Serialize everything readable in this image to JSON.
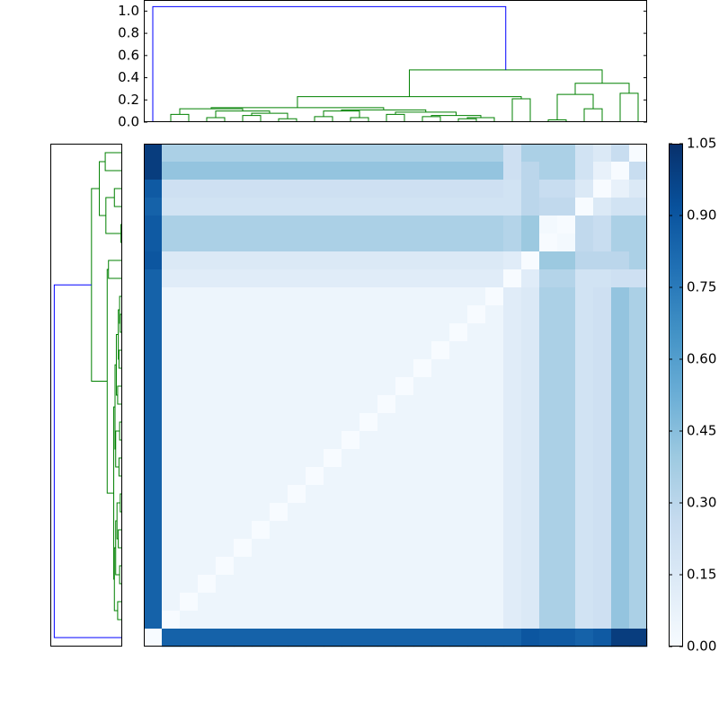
{
  "chart_data": {
    "type": "heatmap",
    "matrix": [
      [
        1.0,
        0.35,
        0.35,
        0.35,
        0.35,
        0.35,
        0.35,
        0.35,
        0.35,
        0.35,
        0.35,
        0.35,
        0.35,
        0.35,
        0.35,
        0.35,
        0.35,
        0.35,
        0.35,
        0.35,
        0.22,
        0.35,
        0.35,
        0.35,
        0.2,
        0.15,
        0.25,
        0
      ],
      [
        1.0,
        0.42,
        0.42,
        0.42,
        0.42,
        0.42,
        0.42,
        0.42,
        0.42,
        0.42,
        0.42,
        0.42,
        0.42,
        0.42,
        0.42,
        0.42,
        0.42,
        0.42,
        0.42,
        0.42,
        0.22,
        0.3,
        0.35,
        0.35,
        0.2,
        0.08,
        0,
        0.25
      ],
      [
        0.88,
        0.22,
        0.22,
        0.22,
        0.22,
        0.22,
        0.22,
        0.22,
        0.22,
        0.22,
        0.22,
        0.22,
        0.22,
        0.22,
        0.22,
        0.22,
        0.22,
        0.22,
        0.22,
        0.22,
        0.2,
        0.3,
        0.25,
        0.25,
        0.15,
        0,
        0.08,
        0.15
      ],
      [
        0.85,
        0.2,
        0.2,
        0.2,
        0.2,
        0.2,
        0.2,
        0.2,
        0.2,
        0.2,
        0.2,
        0.2,
        0.2,
        0.2,
        0.2,
        0.2,
        0.2,
        0.2,
        0.2,
        0.2,
        0.2,
        0.3,
        0.28,
        0.28,
        0,
        0.15,
        0.2,
        0.2
      ],
      [
        0.88,
        0.35,
        0.35,
        0.35,
        0.35,
        0.35,
        0.35,
        0.35,
        0.35,
        0.35,
        0.35,
        0.35,
        0.35,
        0.35,
        0.35,
        0.35,
        0.35,
        0.35,
        0.35,
        0.35,
        0.32,
        0.4,
        0.02,
        0,
        0.28,
        0.25,
        0.35,
        0.35
      ],
      [
        0.88,
        0.35,
        0.35,
        0.35,
        0.35,
        0.35,
        0.35,
        0.35,
        0.35,
        0.35,
        0.35,
        0.35,
        0.35,
        0.35,
        0.35,
        0.35,
        0.35,
        0.35,
        0.35,
        0.35,
        0.32,
        0.4,
        0,
        0.02,
        0.28,
        0.25,
        0.35,
        0.35
      ],
      [
        0.9,
        0.15,
        0.15,
        0.15,
        0.15,
        0.15,
        0.15,
        0.15,
        0.15,
        0.15,
        0.15,
        0.15,
        0.15,
        0.15,
        0.15,
        0.15,
        0.15,
        0.15,
        0.15,
        0.15,
        0.12,
        0,
        0.4,
        0.4,
        0.3,
        0.3,
        0.3,
        0.35
      ],
      [
        0.85,
        0.12,
        0.12,
        0.12,
        0.12,
        0.12,
        0.12,
        0.12,
        0.12,
        0.12,
        0.12,
        0.12,
        0.12,
        0.12,
        0.12,
        0.12,
        0.12,
        0.12,
        0.12,
        0.12,
        0,
        0.12,
        0.32,
        0.32,
        0.2,
        0.2,
        0.22,
        0.22
      ],
      [
        0.85,
        0.05,
        0.05,
        0.05,
        0.05,
        0.05,
        0.05,
        0.05,
        0.05,
        0.05,
        0.05,
        0.05,
        0.05,
        0.05,
        0.05,
        0.05,
        0.05,
        0.05,
        0.05,
        0,
        0.12,
        0.15,
        0.35,
        0.35,
        0.2,
        0.22,
        0.42,
        0.35
      ],
      [
        0.85,
        0.05,
        0.05,
        0.05,
        0.05,
        0.05,
        0.05,
        0.05,
        0.05,
        0.05,
        0.05,
        0.05,
        0.05,
        0.05,
        0.05,
        0.05,
        0.05,
        0.05,
        0,
        0.05,
        0.12,
        0.15,
        0.35,
        0.35,
        0.2,
        0.22,
        0.42,
        0.35
      ],
      [
        0.85,
        0.05,
        0.05,
        0.05,
        0.05,
        0.05,
        0.05,
        0.05,
        0.05,
        0.05,
        0.05,
        0.05,
        0.05,
        0.05,
        0.05,
        0.05,
        0.05,
        0,
        0.05,
        0.05,
        0.12,
        0.15,
        0.35,
        0.35,
        0.2,
        0.22,
        0.42,
        0.35
      ],
      [
        0.85,
        0.05,
        0.05,
        0.05,
        0.05,
        0.05,
        0.05,
        0.05,
        0.05,
        0.05,
        0.05,
        0.05,
        0.05,
        0.05,
        0.05,
        0.05,
        0,
        0.05,
        0.05,
        0.05,
        0.12,
        0.15,
        0.35,
        0.35,
        0.2,
        0.22,
        0.42,
        0.35
      ],
      [
        0.85,
        0.05,
        0.05,
        0.05,
        0.05,
        0.05,
        0.05,
        0.05,
        0.05,
        0.05,
        0.05,
        0.05,
        0.05,
        0.05,
        0.05,
        0,
        0.05,
        0.05,
        0.05,
        0.05,
        0.12,
        0.15,
        0.35,
        0.35,
        0.2,
        0.22,
        0.42,
        0.35
      ],
      [
        0.85,
        0.05,
        0.05,
        0.05,
        0.05,
        0.05,
        0.05,
        0.05,
        0.05,
        0.05,
        0.05,
        0.05,
        0.05,
        0.05,
        0,
        0.05,
        0.05,
        0.05,
        0.05,
        0.05,
        0.12,
        0.15,
        0.35,
        0.35,
        0.2,
        0.22,
        0.42,
        0.35
      ],
      [
        0.85,
        0.05,
        0.05,
        0.05,
        0.05,
        0.05,
        0.05,
        0.05,
        0.05,
        0.05,
        0.05,
        0.05,
        0.05,
        0,
        0.05,
        0.05,
        0.05,
        0.05,
        0.05,
        0.05,
        0.12,
        0.15,
        0.35,
        0.35,
        0.2,
        0.22,
        0.42,
        0.35
      ],
      [
        0.85,
        0.05,
        0.05,
        0.05,
        0.05,
        0.05,
        0.05,
        0.05,
        0.05,
        0.05,
        0.05,
        0.05,
        0,
        0.05,
        0.05,
        0.05,
        0.05,
        0.05,
        0.05,
        0.05,
        0.12,
        0.15,
        0.35,
        0.35,
        0.2,
        0.22,
        0.42,
        0.35
      ],
      [
        0.85,
        0.05,
        0.05,
        0.05,
        0.05,
        0.05,
        0.05,
        0.05,
        0.05,
        0.05,
        0.05,
        0,
        0.05,
        0.05,
        0.05,
        0.05,
        0.05,
        0.05,
        0.05,
        0.05,
        0.12,
        0.15,
        0.35,
        0.35,
        0.2,
        0.22,
        0.42,
        0.35
      ],
      [
        0.85,
        0.05,
        0.05,
        0.05,
        0.05,
        0.05,
        0.05,
        0.05,
        0.05,
        0.05,
        0,
        0.05,
        0.05,
        0.05,
        0.05,
        0.05,
        0.05,
        0.05,
        0.05,
        0.05,
        0.12,
        0.15,
        0.35,
        0.35,
        0.2,
        0.22,
        0.42,
        0.35
      ],
      [
        0.85,
        0.05,
        0.05,
        0.05,
        0.05,
        0.05,
        0.05,
        0.05,
        0.05,
        0,
        0.05,
        0.05,
        0.05,
        0.05,
        0.05,
        0.05,
        0.05,
        0.05,
        0.05,
        0.05,
        0.12,
        0.15,
        0.35,
        0.35,
        0.2,
        0.22,
        0.42,
        0.35
      ],
      [
        0.85,
        0.05,
        0.05,
        0.05,
        0.05,
        0.05,
        0.05,
        0.05,
        0,
        0.05,
        0.05,
        0.05,
        0.05,
        0.05,
        0.05,
        0.05,
        0.05,
        0.05,
        0.05,
        0.05,
        0.12,
        0.15,
        0.35,
        0.35,
        0.2,
        0.22,
        0.42,
        0.35
      ],
      [
        0.85,
        0.05,
        0.05,
        0.05,
        0.05,
        0.05,
        0.05,
        0,
        0.05,
        0.05,
        0.05,
        0.05,
        0.05,
        0.05,
        0.05,
        0.05,
        0.05,
        0.05,
        0.05,
        0.05,
        0.12,
        0.15,
        0.35,
        0.35,
        0.2,
        0.22,
        0.42,
        0.35
      ],
      [
        0.85,
        0.05,
        0.05,
        0.05,
        0.05,
        0.05,
        0,
        0.05,
        0.05,
        0.05,
        0.05,
        0.05,
        0.05,
        0.05,
        0.05,
        0.05,
        0.05,
        0.05,
        0.05,
        0.05,
        0.12,
        0.15,
        0.35,
        0.35,
        0.2,
        0.22,
        0.42,
        0.35
      ],
      [
        0.85,
        0.05,
        0.05,
        0.05,
        0.05,
        0,
        0.05,
        0.05,
        0.05,
        0.05,
        0.05,
        0.05,
        0.05,
        0.05,
        0.05,
        0.05,
        0.05,
        0.05,
        0.05,
        0.05,
        0.12,
        0.15,
        0.35,
        0.35,
        0.2,
        0.22,
        0.42,
        0.35
      ],
      [
        0.85,
        0.05,
        0.05,
        0.05,
        0,
        0.05,
        0.05,
        0.05,
        0.05,
        0.05,
        0.05,
        0.05,
        0.05,
        0.05,
        0.05,
        0.05,
        0.05,
        0.05,
        0.05,
        0.05,
        0.12,
        0.15,
        0.35,
        0.35,
        0.2,
        0.22,
        0.42,
        0.35
      ],
      [
        0.85,
        0.05,
        0.05,
        0,
        0.05,
        0.05,
        0.05,
        0.05,
        0.05,
        0.05,
        0.05,
        0.05,
        0.05,
        0.05,
        0.05,
        0.05,
        0.05,
        0.05,
        0.05,
        0.05,
        0.12,
        0.15,
        0.35,
        0.35,
        0.2,
        0.22,
        0.42,
        0.35
      ],
      [
        0.85,
        0.05,
        0,
        0.05,
        0.05,
        0.05,
        0.05,
        0.05,
        0.05,
        0.05,
        0.05,
        0.05,
        0.05,
        0.05,
        0.05,
        0.05,
        0.05,
        0.05,
        0.05,
        0.05,
        0.12,
        0.15,
        0.35,
        0.35,
        0.2,
        0.22,
        0.42,
        0.35
      ],
      [
        0.85,
        0,
        0.05,
        0.05,
        0.05,
        0.05,
        0.05,
        0.05,
        0.05,
        0.05,
        0.05,
        0.05,
        0.05,
        0.05,
        0.05,
        0.05,
        0.05,
        0.05,
        0.05,
        0.05,
        0.12,
        0.15,
        0.35,
        0.35,
        0.2,
        0.22,
        0.42,
        0.35
      ],
      [
        0,
        0.85,
        0.85,
        0.85,
        0.85,
        0.85,
        0.85,
        0.85,
        0.85,
        0.85,
        0.85,
        0.85,
        0.85,
        0.85,
        0.85,
        0.85,
        0.85,
        0.85,
        0.85,
        0.85,
        0.85,
        0.9,
        0.88,
        0.88,
        0.85,
        0.88,
        1.0,
        1.0
      ]
    ],
    "colormap": [
      "#f7fbff",
      "#deebf7",
      "#c6dbef",
      "#9ecae1",
      "#6baed6",
      "#4292c6",
      "#2171b5",
      "#08519c",
      "#08306b"
    ],
    "clim": [
      0,
      1.05
    ],
    "cticks": [
      {
        "value": 0,
        "label": "0.00"
      },
      {
        "value": 0.15,
        "label": "0.15"
      },
      {
        "value": 0.3,
        "label": "0.30"
      },
      {
        "value": 0.45,
        "label": "0.45"
      },
      {
        "value": 0.6,
        "label": "0.60"
      },
      {
        "value": 0.75,
        "label": "0.75"
      },
      {
        "value": 0.9,
        "label": "0.90"
      },
      {
        "value": 1.05,
        "label": "1.05"
      }
    ],
    "dendrogram": {
      "ylim": [
        0,
        1.1
      ],
      "yticks": [
        {
          "value": 0,
          "label": "0.0"
        },
        {
          "value": 0.2,
          "label": "0.2"
        },
        {
          "value": 0.4,
          "label": "0.4"
        },
        {
          "value": 0.6,
          "label": "0.6"
        },
        {
          "value": 0.8,
          "label": "0.8"
        },
        {
          "value": 1,
          "label": "1.0"
        }
      ],
      "color_threshold": 0.7,
      "above_color": "#0000ff",
      "below_color": "#008000",
      "icoord": [
        [
          15,
          15,
          25,
          25
        ],
        [
          35,
          35,
          45,
          45
        ],
        [
          55,
          55,
          65,
          65
        ],
        [
          75,
          75,
          85,
          85
        ],
        [
          60,
          60,
          80,
          80
        ],
        [
          40,
          40,
          70,
          70
        ],
        [
          20,
          20,
          55,
          55
        ],
        [
          95,
          95,
          105,
          105
        ],
        [
          115,
          115,
          125,
          125
        ],
        [
          100,
          100,
          120,
          120
        ],
        [
          135,
          135,
          145,
          145
        ],
        [
          155,
          155,
          165,
          165
        ],
        [
          175,
          175,
          185,
          185
        ],
        [
          180,
          180,
          195,
          195
        ],
        [
          160,
          160,
          187.5,
          187.5
        ],
        [
          140,
          140,
          173.75,
          173.75
        ],
        [
          110,
          110,
          156.875,
          156.875
        ],
        [
          37.5,
          37.5,
          133.4375,
          133.4375
        ],
        [
          205,
          205,
          215,
          215
        ],
        [
          85.46875,
          85.46875,
          210,
          210
        ],
        [
          225,
          225,
          235,
          235
        ],
        [
          245,
          245,
          255,
          255
        ],
        [
          230,
          230,
          250,
          250
        ],
        [
          265,
          265,
          275,
          275
        ],
        [
          240,
          240,
          270,
          270
        ],
        [
          147.734375,
          147.734375,
          255,
          255
        ],
        [
          5,
          5,
          201.3671875,
          201.3671875
        ]
      ],
      "dcoord": [
        [
          0,
          0.07,
          0.07,
          0
        ],
        [
          0,
          0.04,
          0.04,
          0
        ],
        [
          0,
          0.06,
          0.06,
          0
        ],
        [
          0,
          0.03,
          0.03,
          0
        ],
        [
          0.06,
          0.08,
          0.08,
          0.03
        ],
        [
          0.04,
          0.1,
          0.1,
          0.08
        ],
        [
          0.07,
          0.12,
          0.12,
          0.1
        ],
        [
          0,
          0.05,
          0.05,
          0
        ],
        [
          0,
          0.04,
          0.04,
          0
        ],
        [
          0.05,
          0.1,
          0.1,
          0.04
        ],
        [
          0,
          0.07,
          0.07,
          0
        ],
        [
          0,
          0.05,
          0.05,
          0
        ],
        [
          0,
          0.03,
          0.03,
          0
        ],
        [
          0.03,
          0.04,
          0.04,
          0
        ],
        [
          0.05,
          0.06,
          0.06,
          0.04
        ],
        [
          0.07,
          0.09,
          0.09,
          0.06
        ],
        [
          0.1,
          0.11,
          0.11,
          0.09
        ],
        [
          0.12,
          0.13,
          0.13,
          0.11
        ],
        [
          0,
          0.21,
          0.21,
          0
        ],
        [
          0.13,
          0.23,
          0.23,
          0.21
        ],
        [
          0,
          0.02,
          0.02,
          0
        ],
        [
          0,
          0.12,
          0.12,
          0
        ],
        [
          0.02,
          0.25,
          0.25,
          0.12
        ],
        [
          0,
          0.26,
          0.26,
          0
        ],
        [
          0.25,
          0.35,
          0.35,
          0.26
        ],
        [
          0.23,
          0.47,
          0.47,
          0.35
        ],
        [
          0,
          1.04,
          1.04,
          0.47
        ]
      ]
    }
  }
}
